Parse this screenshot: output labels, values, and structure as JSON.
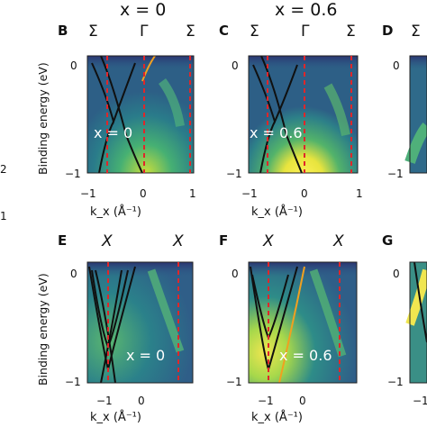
{
  "headers": {
    "col1": "x = 0",
    "col2": "x = 0.6"
  },
  "panels": {
    "B": {
      "label": "B",
      "syms": [
        "Σ",
        "Γ",
        "Σ"
      ],
      "overlay": "x = 0"
    },
    "C": {
      "label": "C",
      "syms": [
        "Σ",
        "Γ",
        "Σ"
      ],
      "overlay": "x = 0.6"
    },
    "D": {
      "label": "D",
      "syms": [
        "Σ"
      ]
    },
    "E": {
      "label": "E",
      "syms": [
        "X",
        "X"
      ],
      "overlay": "x = 0"
    },
    "F": {
      "label": "F",
      "syms": [
        "X",
        "X"
      ],
      "overlay": "x = 0.6"
    },
    "G": {
      "label": "G"
    }
  },
  "ylabel": "Binding energy (eV)",
  "xlabel": "k_x (Å⁻¹)",
  "top_ticks": {
    "x": [
      "−1",
      "0",
      "1"
    ],
    "y": [
      "0",
      "−1"
    ]
  },
  "bottom_ticks": {
    "x": [
      "−1",
      "0"
    ],
    "y": [
      "0",
      "−1"
    ]
  },
  "left_edge_labels": [
    "2",
    "1"
  ],
  "g_tick": "−1",
  "colors": {
    "bg": "#2f6b8c",
    "bright": "#f3e650",
    "cut": "#e0262a",
    "band": "#101010",
    "fit": "#f0a020"
  }
}
